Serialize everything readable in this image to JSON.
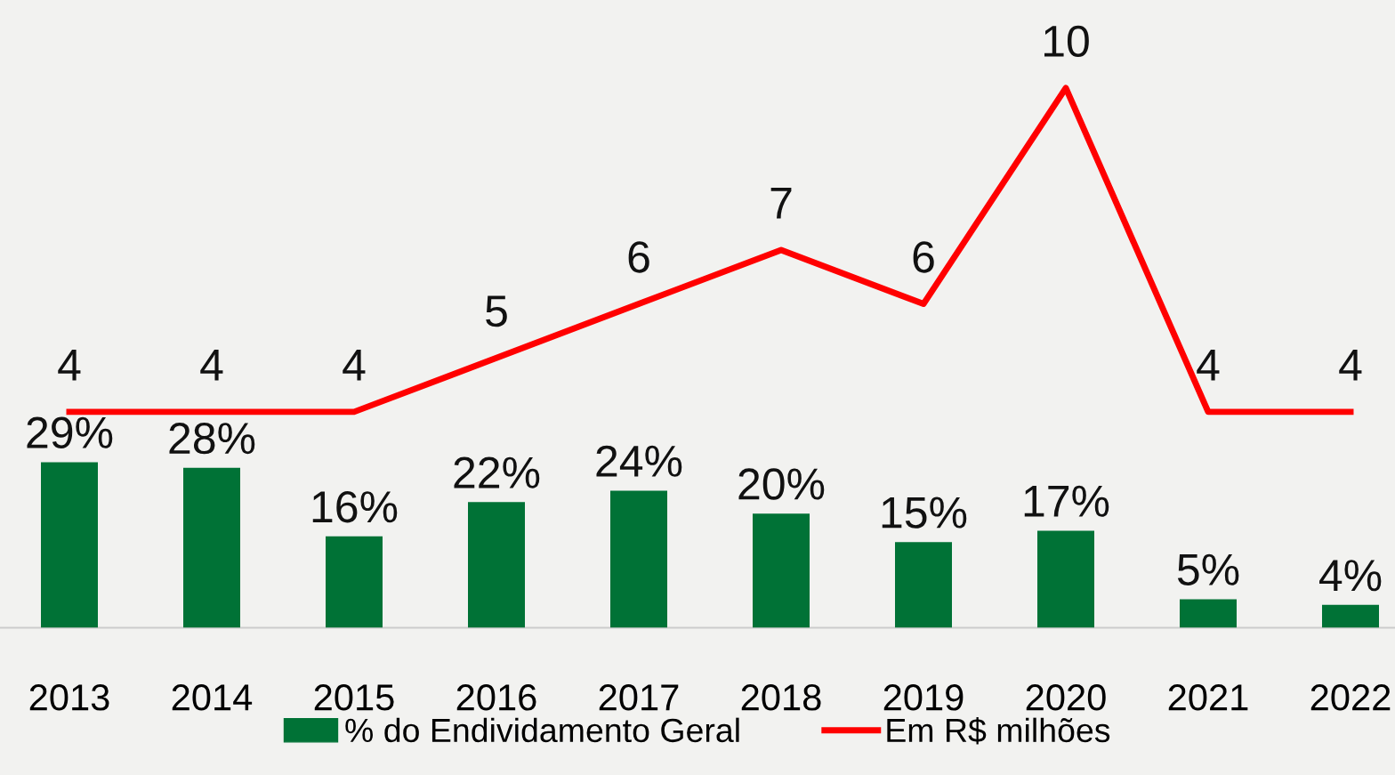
{
  "chart_data": [
    {
      "type": "bar",
      "categories": [
        "2013",
        "2014",
        "2015",
        "2016",
        "2017",
        "2018",
        "2019",
        "2020",
        "2021",
        "2022"
      ],
      "series": [
        {
          "name": "% do Endividamento Geral",
          "color": "#007236",
          "values": [
            29,
            28,
            16,
            22,
            24,
            20,
            15,
            17,
            5,
            4
          ],
          "value_labels": [
            "29%",
            "28%",
            "16%",
            "22%",
            "24%",
            "20%",
            "15%",
            "17%",
            "5%",
            "4%"
          ]
        }
      ],
      "grid": false,
      "legend": "bottom",
      "tick_labels": "x"
    },
    {
      "type": "line",
      "categories": [
        "2013",
        "2014",
        "2015",
        "2016",
        "2017",
        "2018",
        "2019",
        "2020",
        "2021",
        "2022"
      ],
      "series": [
        {
          "name": "Em R$ milhões",
          "color": "#ff0000",
          "values": [
            4,
            4,
            4,
            5,
            6,
            7,
            6,
            10,
            4,
            4
          ]
        }
      ],
      "data_labels": true,
      "grid": false,
      "legend": "bottom",
      "marker": "none",
      "line_style": "solid",
      "tick_labels": false
    }
  ]
}
